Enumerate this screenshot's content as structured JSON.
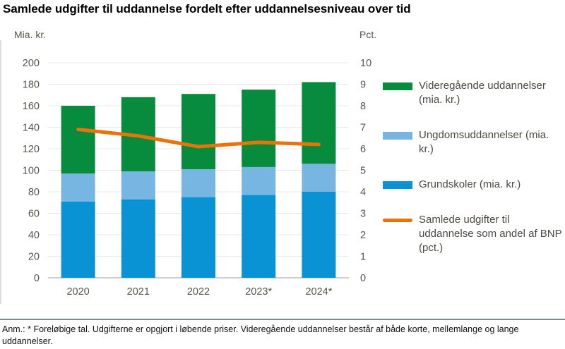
{
  "title": "Samlede udgifter til uddannelse fordelt efter uddannelsesniveau over tid",
  "left_axis": {
    "unit": "Mia. kr."
  },
  "right_axis": {
    "unit": "Pct."
  },
  "legend": {
    "items": [
      {
        "label": "Videregående uddannelser",
        "unit": "(mia. kr.)",
        "swatch": "bar",
        "color": "#068C3C"
      },
      {
        "label": "Ungdomsuddannelser",
        "unit": "(mia. kr.)",
        "swatch": "bar",
        "color": "#77B6E3"
      },
      {
        "label": "Grundskoler",
        "unit": "(mia. kr.)",
        "swatch": "bar",
        "color": "#0993D5"
      },
      {
        "label": "Samlede udgifter til uddannelse som andel af BNP",
        "unit": "(pct.)",
        "swatch": "line",
        "color": "#EA7207"
      }
    ]
  },
  "footer": {
    "note": "Anm.: * Foreløbige tal. Udgifterne er opgjort i løbende priser. Videregående uddannelser består af både korte, mellemlange og lange uddannelser."
  },
  "chart_data": {
    "type": "bar",
    "subtype": "stacked-bars-with-line",
    "categories": [
      "2020",
      "2021",
      "2022",
      "2023*",
      "2024*"
    ],
    "series": [
      {
        "name": "Grundskoler (mia. kr.)",
        "type": "bar",
        "axis": "left",
        "color": "#0993D5",
        "values": [
          71,
          73,
          75,
          77,
          80
        ]
      },
      {
        "name": "Ungdomsuddannelser (mia. kr.)",
        "type": "bar",
        "axis": "left",
        "color": "#77B6E3",
        "values": [
          26,
          26,
          26,
          26,
          26
        ]
      },
      {
        "name": "Videregående uddannelser (mia. kr.)",
        "type": "bar",
        "axis": "left",
        "color": "#068C3C",
        "values": [
          63,
          69,
          70,
          72,
          76
        ]
      },
      {
        "name": "Samlede udgifter til uddannelse som andel af BNP (pct.)",
        "type": "line",
        "axis": "right",
        "color": "#EA7207",
        "values": [
          6.9,
          6.6,
          6.1,
          6.3,
          6.2
        ]
      }
    ],
    "stack_totals": [
      160,
      168,
      171,
      175,
      182
    ],
    "title": "Samlede udgifter til uddannelse fordelt efter uddannelsesniveau over tid",
    "xlabel": "",
    "ylabel_left": "Mia. kr.",
    "ylabel_right": "Pct.",
    "left_ylim": [
      0,
      200
    ],
    "left_tick_step": 20,
    "right_ylim": [
      0,
      10
    ],
    "right_tick_step": 1,
    "grid": true,
    "legend_position": "right"
  },
  "colors": {
    "gridline": "#E8E8E8",
    "axis_line": "#BFBFBF",
    "tick_label": "#57544C",
    "divider": "#7D8A92"
  }
}
